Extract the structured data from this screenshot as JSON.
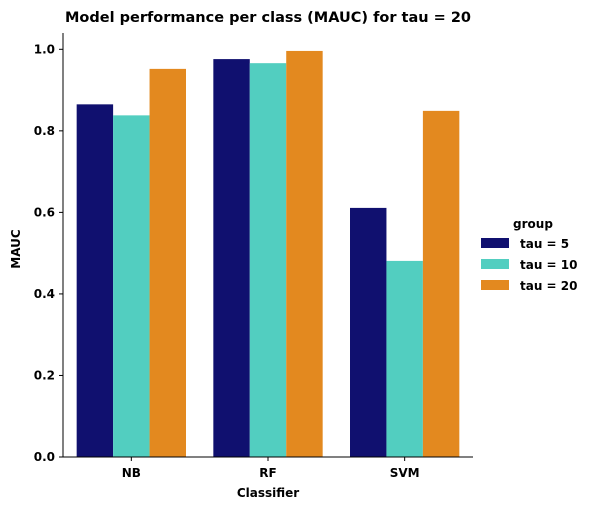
{
  "chart_data": {
    "type": "bar",
    "title": "Model performance per class (MAUC) for tau = 20",
    "xlabel": "Classifier",
    "ylabel": "MAUC",
    "categories": [
      "NB",
      "RF",
      "SVM"
    ],
    "ylim": [
      0,
      1.04
    ],
    "yticks": [
      0.0,
      0.2,
      0.4,
      0.6,
      0.8,
      1.0
    ],
    "ytick_labels": [
      "0.0",
      "0.2",
      "0.4",
      "0.6",
      "0.8",
      "1.0"
    ],
    "grid": false,
    "legend": {
      "title": "group",
      "placement": "right"
    },
    "series": [
      {
        "name": "tau = 5",
        "color": "#10106f",
        "values": [
          0.865,
          0.976,
          0.611
        ]
      },
      {
        "name": "tau = 10",
        "color": "#52cec0",
        "values": [
          0.838,
          0.966,
          0.481
        ]
      },
      {
        "name": "tau = 20",
        "color": "#e3891f",
        "values": [
          0.952,
          0.996,
          0.849
        ]
      }
    ]
  }
}
